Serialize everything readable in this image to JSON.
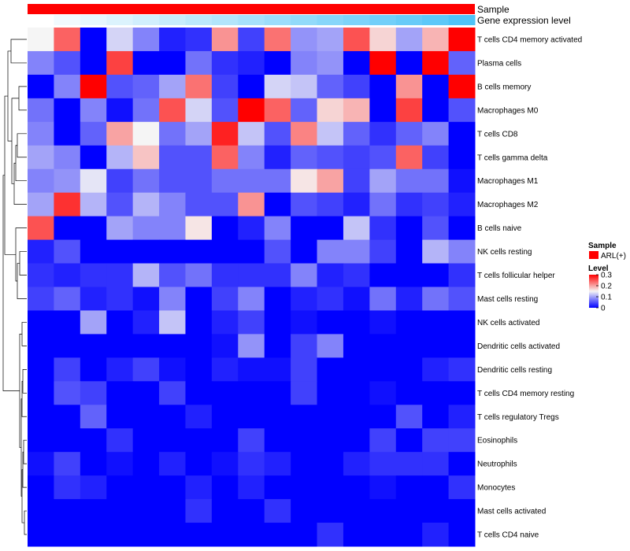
{
  "chart_data": {
    "type": "heatmap",
    "annotations": [
      {
        "name": "Sample",
        "color": "#ff0000"
      },
      {
        "name": "Gene expression level",
        "color_low": "#ffffff",
        "color_high": "#4fc3f7"
      }
    ],
    "rows": [
      "T cells CD4 memory activated",
      "Plasma cells",
      "B cells memory",
      "Macrophages M0",
      "T cells CD8",
      "T cells gamma delta",
      "Macrophages M1",
      "Macrophages M2",
      "B cells naive",
      "NK cells resting",
      "T cells follicular helper",
      "Mast cells resting",
      "NK cells activated",
      "Dendritic cells activated",
      "Dendritic cells resting",
      "T cells CD4 memory resting",
      "T cells regulatory  Tregs",
      "Eosinophils",
      "Neutrophils",
      "Monocytes",
      "Mast cells activated",
      "T cells CD4 naive"
    ],
    "n_columns": 17,
    "values": [
      [
        0.15,
        0.24,
        0.0,
        0.13,
        0.08,
        0.02,
        0.03,
        0.21,
        0.04,
        0.23,
        0.09,
        0.1,
        0.25,
        0.17,
        0.1,
        0.19,
        0.3
      ],
      [
        0.08,
        0.05,
        0.0,
        0.26,
        0.0,
        0.0,
        0.07,
        0.03,
        0.02,
        0.0,
        0.08,
        0.09,
        0.0,
        0.3,
        0.0,
        0.3,
        0.06
      ],
      [
        0.0,
        0.08,
        0.3,
        0.05,
        0.06,
        0.1,
        0.23,
        0.04,
        0.0,
        0.13,
        0.12,
        0.06,
        0.04,
        0.0,
        0.21,
        0.0,
        0.3
      ],
      [
        0.07,
        0.0,
        0.08,
        0.01,
        0.07,
        0.25,
        0.13,
        0.05,
        0.3,
        0.24,
        0.06,
        0.17,
        0.19,
        0.0,
        0.26,
        0.0,
        0.05
      ],
      [
        0.08,
        0.0,
        0.06,
        0.2,
        0.15,
        0.07,
        0.1,
        0.28,
        0.12,
        0.05,
        0.22,
        0.12,
        0.06,
        0.03,
        0.06,
        0.08,
        0.0
      ],
      [
        0.1,
        0.08,
        0.0,
        0.11,
        0.18,
        0.05,
        0.05,
        0.24,
        0.08,
        0.02,
        0.06,
        0.05,
        0.04,
        0.05,
        0.24,
        0.04,
        0.0
      ],
      [
        0.08,
        0.09,
        0.14,
        0.04,
        0.07,
        0.05,
        0.05,
        0.07,
        0.07,
        0.07,
        0.16,
        0.2,
        0.04,
        0.1,
        0.07,
        0.07,
        0.01
      ],
      [
        0.1,
        0.27,
        0.11,
        0.05,
        0.11,
        0.08,
        0.05,
        0.05,
        0.21,
        0.0,
        0.05,
        0.04,
        0.02,
        0.07,
        0.03,
        0.04,
        0.02
      ],
      [
        0.25,
        0.0,
        0.0,
        0.1,
        0.08,
        0.08,
        0.16,
        0.0,
        0.02,
        0.08,
        0.0,
        0.0,
        0.12,
        0.03,
        0.0,
        0.05,
        0.0
      ],
      [
        0.02,
        0.05,
        0.0,
        0.0,
        0.0,
        0.0,
        0.0,
        0.0,
        0.0,
        0.05,
        0.0,
        0.08,
        0.08,
        0.04,
        0.0,
        0.11,
        0.08
      ],
      [
        0.03,
        0.02,
        0.03,
        0.03,
        0.11,
        0.05,
        0.07,
        0.03,
        0.03,
        0.03,
        0.08,
        0.02,
        0.03,
        0.0,
        0.0,
        0.0,
        0.03
      ],
      [
        0.04,
        0.06,
        0.02,
        0.03,
        0.01,
        0.08,
        0.0,
        0.04,
        0.08,
        0.0,
        0.02,
        0.03,
        0.01,
        0.07,
        0.02,
        0.07,
        0.05
      ],
      [
        0.0,
        0.0,
        0.1,
        0.0,
        0.02,
        0.12,
        0.0,
        0.02,
        0.04,
        0.0,
        0.01,
        0.0,
        0.0,
        0.01,
        0.0,
        0.0,
        0.0
      ],
      [
        0.0,
        0.0,
        0.0,
        0.0,
        0.0,
        0.0,
        0.0,
        0.01,
        0.09,
        0.0,
        0.04,
        0.08,
        0.0,
        0.0,
        0.0,
        0.0,
        0.0
      ],
      [
        0.0,
        0.04,
        0.0,
        0.02,
        0.04,
        0.01,
        0.0,
        0.02,
        0.01,
        0.01,
        0.04,
        0.0,
        0.0,
        0.0,
        0.0,
        0.02,
        0.03
      ],
      [
        0.0,
        0.05,
        0.04,
        0.0,
        0.0,
        0.04,
        0.0,
        0.0,
        0.0,
        0.0,
        0.04,
        0.0,
        0.0,
        0.01,
        0.0,
        0.0,
        0.0
      ],
      [
        0.0,
        0.0,
        0.06,
        0.0,
        0.0,
        0.0,
        0.02,
        0.0,
        0.0,
        0.0,
        0.0,
        0.0,
        0.0,
        0.0,
        0.05,
        0.0,
        0.02
      ],
      [
        0.0,
        0.0,
        0.0,
        0.03,
        0.0,
        0.0,
        0.0,
        0.0,
        0.04,
        0.0,
        0.0,
        0.0,
        0.0,
        0.04,
        0.0,
        0.04,
        0.04
      ],
      [
        0.01,
        0.04,
        0.0,
        0.01,
        0.0,
        0.02,
        0.0,
        0.01,
        0.03,
        0.02,
        0.0,
        0.0,
        0.02,
        0.03,
        0.03,
        0.03,
        0.0
      ],
      [
        0.0,
        0.03,
        0.02,
        0.0,
        0.0,
        0.0,
        0.02,
        0.0,
        0.02,
        0.0,
        0.0,
        0.0,
        0.0,
        0.01,
        0.0,
        0.0,
        0.03
      ],
      [
        0.0,
        0.0,
        0.0,
        0.0,
        0.0,
        0.0,
        0.03,
        0.0,
        0.0,
        0.03,
        0.0,
        0.0,
        0.0,
        0.0,
        0.0,
        0.0,
        0.0
      ],
      [
        0.0,
        0.0,
        0.0,
        0.0,
        0.0,
        0.0,
        0.0,
        0.0,
        0.0,
        0.0,
        0.0,
        0.03,
        0.0,
        0.0,
        0.0,
        0.02,
        0.0
      ]
    ],
    "gene_expression_levels": [
      0.0,
      0.08,
      0.14,
      0.2,
      0.26,
      0.32,
      0.38,
      0.44,
      0.5,
      0.56,
      0.62,
      0.68,
      0.74,
      0.8,
      0.86,
      0.92,
      1.0
    ],
    "color_scale": {
      "low": "#0000ff",
      "mid": "#f5f5f5",
      "high": "#ff0000",
      "min": 0,
      "mid_value": 0.15,
      "max": 0.3
    },
    "legend": {
      "sample_title": "Sample",
      "sample_entry": "ARL(+)",
      "level_title": "Level",
      "ticks": [
        "0.3",
        "0.2",
        "0.1",
        "0"
      ],
      "tick_values": [
        0.3,
        0.2,
        0.1,
        0
      ]
    },
    "dendrogram_side": "left"
  }
}
